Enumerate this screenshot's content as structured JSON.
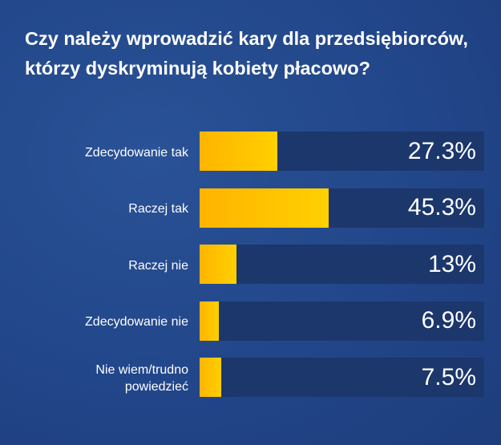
{
  "colors": {
    "background": "#23478a",
    "track": "#1c376c",
    "bar_start": "#ffb400",
    "bar_end": "#ffd000",
    "text": "#ffffff"
  },
  "chart_data": {
    "type": "bar",
    "orientation": "horizontal",
    "title": "Czy należy wprowadzić kary dla przedsiębiorców, którzy dyskryminują kobiety płacowo?",
    "categories": [
      "Zdecydowanie tak",
      "Raczej tak",
      "Raczej nie",
      "Zdecydowanie nie",
      "Nie wiem/trudno powiedzieć"
    ],
    "values": [
      27.3,
      45.3,
      13,
      6.9,
      7.5
    ],
    "value_labels": [
      "27.3%",
      "45.3%",
      "13%",
      "6.9%",
      "7.5%"
    ],
    "unit": "%",
    "xlim": [
      0,
      100
    ],
    "grid": false,
    "legend": "none"
  }
}
